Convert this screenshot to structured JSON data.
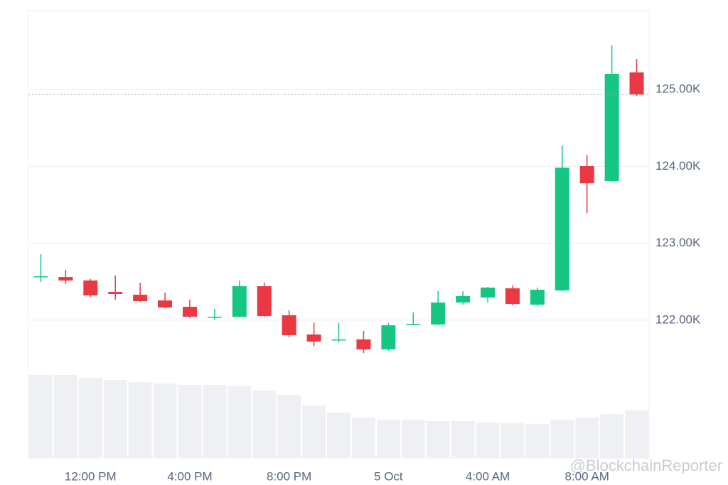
{
  "chart_data": {
    "type": "candlestick",
    "categories": [
      null,
      null,
      "12:00 PM",
      null,
      null,
      null,
      "4:00 PM",
      null,
      null,
      null,
      "8:00 PM",
      null,
      null,
      null,
      "5 Oct",
      null,
      null,
      null,
      "4:00 AM",
      null,
      null,
      null,
      "8:00 AM",
      null,
      null
    ],
    "open": [
      122562,
      122562,
      122516,
      122368,
      122331,
      122257,
      122174,
      122036,
      122045,
      122442,
      122064,
      121814,
      121740,
      121750,
      121620,
      121944,
      121944,
      122230,
      122294,
      122414,
      122202,
      122387,
      124003,
      123809,
      125222
    ],
    "high": [
      122858,
      122655,
      122535,
      122581,
      122488,
      122359,
      122267,
      122147,
      122516,
      122488,
      122128,
      121971,
      121962,
      121860,
      121962,
      122101,
      122377,
      122377,
      122433,
      122451,
      122424,
      124271,
      124150,
      125573,
      125397
    ],
    "low": [
      122498,
      122470,
      122304,
      122267,
      122239,
      122156,
      122027,
      122008,
      122036,
      122045,
      121777,
      121666,
      121712,
      121574,
      121602,
      121935,
      121935,
      122202,
      122230,
      122193,
      122183,
      122377,
      123393,
      123800,
      124916
    ],
    "close": [
      122571,
      122516,
      122322,
      122341,
      122248,
      122165,
      122045,
      122045,
      122442,
      122054,
      121805,
      121722,
      121750,
      121620,
      121934,
      121953,
      122230,
      122313,
      122424,
      122211,
      122396,
      123984,
      123781,
      125203,
      124935
    ],
    "volume": [
      117,
      117,
      113,
      110,
      107,
      105,
      103,
      103,
      101,
      95,
      89,
      74,
      64,
      57,
      54,
      54,
      52,
      52,
      50,
      49,
      48,
      54,
      57,
      62,
      67
    ],
    "volume_lim": [
      0,
      130
    ],
    "up_color": "#16c784",
    "down_color": "#ea3943",
    "volume_color": "#eef0f3",
    "ylim": [
      120208,
      126025
    ],
    "yticks": [
      {
        "value": 122000,
        "label": "122.00K"
      },
      {
        "value": 123000,
        "label": "123.00K"
      },
      {
        "value": 124000,
        "label": "124.00K"
      },
      {
        "value": 125000,
        "label": "125.00K"
      }
    ],
    "grid": true,
    "watermark": "@BlockchainReporter"
  }
}
